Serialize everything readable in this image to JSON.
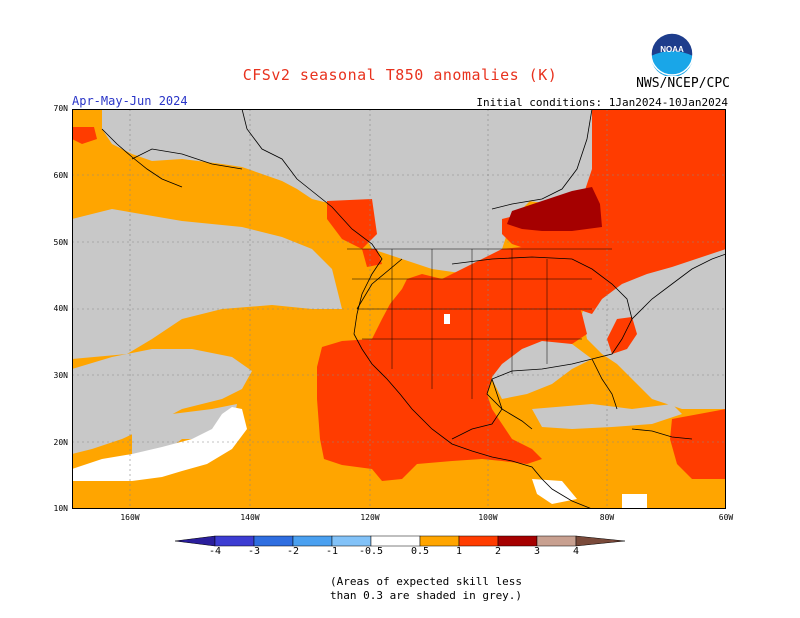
{
  "header": {
    "title": "CFSv2 seasonal T850 anomalies (K)",
    "agency": "NWS/NCEP/CPC",
    "season": "Apr-May-Jun 2024",
    "initial_conditions": "Initial conditions: 1Jan2024-10Jan2024",
    "logo_text": "NOAA"
  },
  "map": {
    "lat_labels": [
      "70N",
      "60N",
      "50N",
      "40N",
      "30N",
      "20N",
      "10N"
    ],
    "lon_labels": [
      "160W",
      "140W",
      "120W",
      "100W",
      "80W",
      "60W"
    ],
    "colors": {
      "grey": "#c8c8c8",
      "orange": "#ffa500",
      "red_orange": "#ff3c00",
      "dark_red": "#a50000",
      "white": "#ffffff",
      "boundary": "#000000"
    }
  },
  "colorbar": {
    "tick_labels": [
      "-4",
      "-3",
      "-2",
      "-1",
      "-0.5",
      "0.5",
      "1",
      "2",
      "3",
      "4"
    ],
    "colors": [
      "#2a1e9c",
      "#3c3cd2",
      "#2f6ee0",
      "#4aa0f0",
      "#82c2f8",
      "#ffffff",
      "#ffa500",
      "#ff3c00",
      "#a50000",
      "#c8a090",
      "#7a4a3a"
    ]
  },
  "note": {
    "line1": "(Areas of expected skill less",
    "line2": "than 0.3 are shaded in grey.)"
  }
}
